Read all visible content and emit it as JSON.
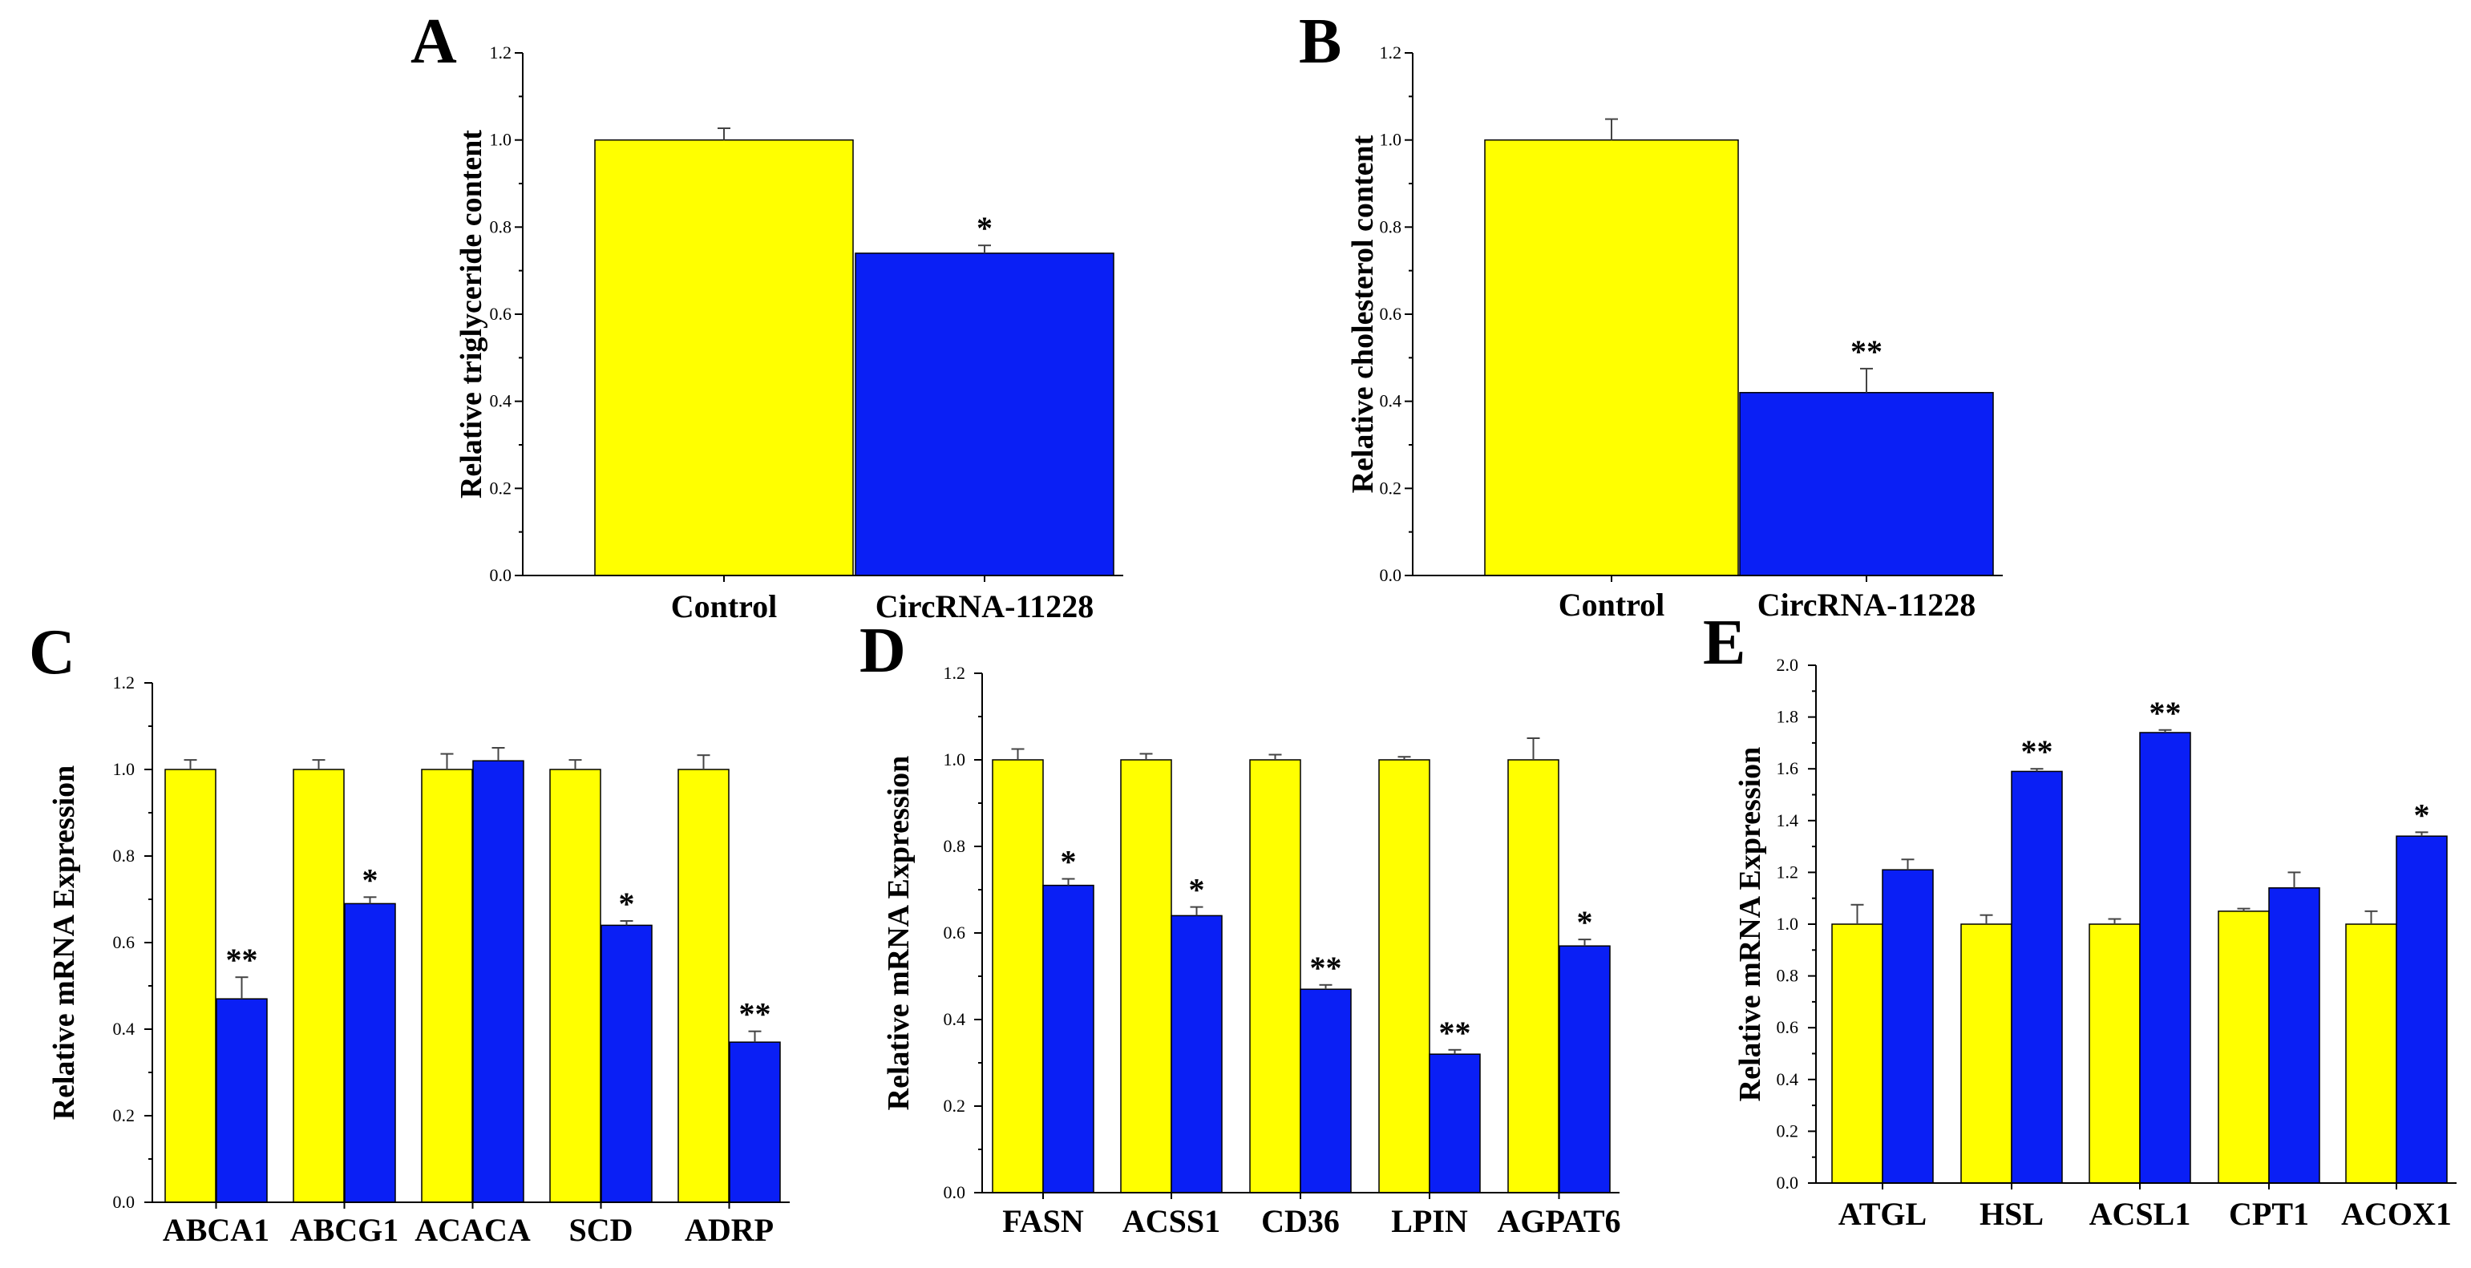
{
  "colors": {
    "control": "#ffff00",
    "treatment": "#0a1ff5",
    "bar_outline": "#000000"
  },
  "chart_data": [
    {
      "panel": "A",
      "type": "bar",
      "ylabel": "Relative triglyceride content",
      "ylim": [
        0,
        1.2
      ],
      "yticks": [
        0.0,
        0.2,
        0.4,
        0.6,
        0.8,
        1.0,
        1.2
      ],
      "ytick_labels": [
        "0.0",
        "0.2",
        "0.4",
        "0.6",
        "0.8",
        "1.0",
        "1.2"
      ],
      "categories": [
        "Control",
        "CircRNA-11228"
      ],
      "values": [
        1.0,
        0.74
      ],
      "errors": [
        0.027,
        0.018
      ],
      "significance": [
        "",
        "*"
      ]
    },
    {
      "panel": "B",
      "type": "bar",
      "ylabel": "Relative cholesterol content",
      "ylim": [
        0,
        1.2
      ],
      "yticks": [
        0.0,
        0.2,
        0.4,
        0.6,
        0.8,
        1.0,
        1.2
      ],
      "ytick_labels": [
        "0.0",
        "0.2",
        "0.4",
        "0.6",
        "0.8",
        "1.0",
        "1.2"
      ],
      "categories": [
        "Control",
        "CircRNA-11228"
      ],
      "values": [
        1.0,
        0.42
      ],
      "errors": [
        0.048,
        0.055
      ],
      "significance": [
        "",
        "**"
      ]
    },
    {
      "panel": "C",
      "type": "bar",
      "ylabel": "Relative mRNA Expression",
      "ylim": [
        0,
        1.2
      ],
      "yticks": [
        0.0,
        0.2,
        0.4,
        0.6,
        0.8,
        1.0,
        1.2
      ],
      "ytick_labels": [
        "0.0",
        "0.2",
        "0.4",
        "0.6",
        "0.8",
        "1.0",
        "1.2"
      ],
      "categories": [
        "ABCA1",
        "ABCG1",
        "ACACA",
        "SCD",
        "ADRP"
      ],
      "series": [
        {
          "values": [
            1.0,
            1.0,
            1.0,
            1.0,
            1.0
          ],
          "errors": [
            0.022,
            0.022,
            0.036,
            0.022,
            0.033
          ],
          "significance": [
            "",
            "",
            "",
            "",
            ""
          ]
        },
        {
          "values": [
            0.47,
            0.69,
            1.02,
            0.64,
            0.37
          ],
          "errors": [
            0.05,
            0.015,
            0.03,
            0.01,
            0.025
          ],
          "significance": [
            "**",
            "*",
            "",
            "*",
            "**"
          ]
        }
      ]
    },
    {
      "panel": "D",
      "type": "bar",
      "ylabel": "Relative mRNA Expression",
      "ylim": [
        0,
        1.2
      ],
      "yticks": [
        0.0,
        0.2,
        0.4,
        0.6,
        0.8,
        1.0,
        1.2
      ],
      "ytick_labels": [
        "0.0",
        "0.2",
        "0.4",
        "0.6",
        "0.8",
        "1.0",
        "1.2"
      ],
      "categories": [
        "FASN",
        "ACSS1",
        "CD36",
        "LPIN",
        "AGPAT6"
      ],
      "series": [
        {
          "values": [
            1.0,
            1.0,
            1.0,
            1.0,
            1.0
          ],
          "errors": [
            0.025,
            0.014,
            0.012,
            0.007,
            0.05
          ],
          "significance": [
            "",
            "",
            "",
            "",
            ""
          ]
        },
        {
          "values": [
            0.71,
            0.64,
            0.47,
            0.32,
            0.57
          ],
          "errors": [
            0.015,
            0.02,
            0.01,
            0.01,
            0.015
          ],
          "significance": [
            "*",
            "*",
            "**",
            "**",
            "*"
          ]
        }
      ]
    },
    {
      "panel": "E",
      "type": "bar",
      "ylabel": "Relative mRNA Expression",
      "ylim": [
        0,
        2.0
      ],
      "yticks": [
        0.0,
        0.2,
        0.4,
        0.6,
        0.8,
        1.0,
        1.2,
        1.4,
        1.6,
        1.8,
        2.0
      ],
      "ytick_labels": [
        "0.0",
        "0.2",
        "0.4",
        "0.6",
        "0.8",
        "1.0",
        "1.2",
        "1.4",
        "1.6",
        "1.8",
        "2.0"
      ],
      "categories": [
        "ATGL",
        "HSL",
        "ACSL1",
        "CPT1",
        "ACOX1"
      ],
      "series": [
        {
          "values": [
            1.0,
            1.0,
            1.0,
            1.05,
            1.0
          ],
          "errors": [
            0.075,
            0.035,
            0.02,
            0.01,
            0.05
          ],
          "significance": [
            "",
            "",
            "",
            "",
            ""
          ]
        },
        {
          "values": [
            1.21,
            1.59,
            1.74,
            1.14,
            1.34
          ],
          "errors": [
            0.04,
            0.01,
            0.01,
            0.06,
            0.015
          ],
          "significance": [
            "",
            "**",
            "**",
            "",
            "*"
          ]
        }
      ]
    }
  ]
}
